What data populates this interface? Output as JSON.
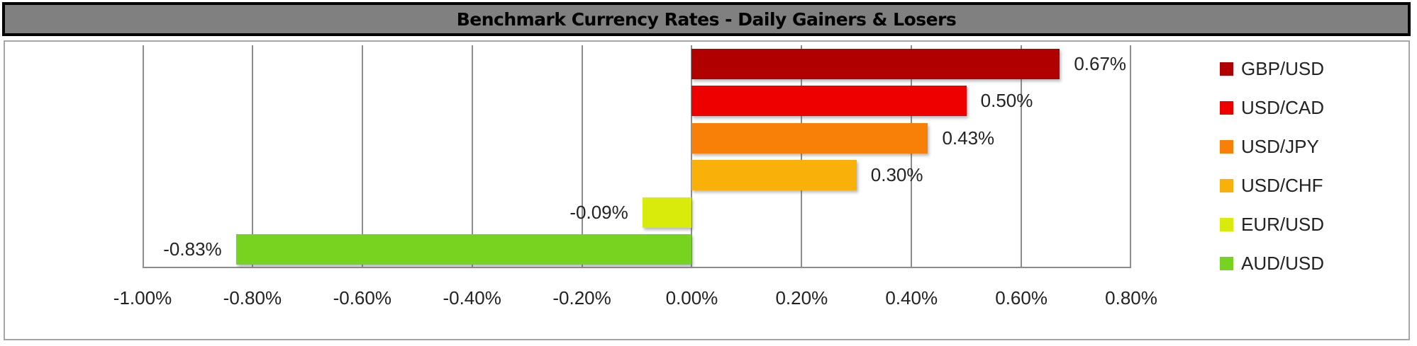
{
  "title": "Benchmark Currency Rates - Daily Gainers & Losers",
  "chart_data": {
    "type": "bar",
    "orientation": "horizontal",
    "title": "Benchmark Currency Rates - Daily Gainers & Losers",
    "xlabel": "",
    "ylabel": "",
    "xlim": [
      -1.0,
      0.8
    ],
    "x_ticks": [
      "-1.00%",
      "-0.80%",
      "-0.60%",
      "-0.40%",
      "-0.20%",
      "0.00%",
      "0.20%",
      "0.40%",
      "0.60%",
      "0.80%"
    ],
    "grid": "vertical",
    "legend_position": "right",
    "categories": [
      "GBP/USD",
      "USD/CAD",
      "USD/JPY",
      "USD/CHF",
      "EUR/USD",
      "AUD/USD"
    ],
    "values": [
      0.67,
      0.5,
      0.43,
      0.3,
      -0.09,
      -0.83
    ],
    "value_labels": [
      "0.67%",
      "0.50%",
      "0.43%",
      "0.30%",
      "-0.09%",
      "-0.83%"
    ],
    "colors": [
      "#b00000",
      "#ee0000",
      "#f98008",
      "#f9b10a",
      "#d9eb0a",
      "#76d31f"
    ],
    "unit": "%"
  },
  "legend": [
    {
      "label": "GBP/USD",
      "color": "#b00000"
    },
    {
      "label": "USD/CAD",
      "color": "#ee0000"
    },
    {
      "label": "USD/JPY",
      "color": "#f98008"
    },
    {
      "label": "USD/CHF",
      "color": "#f9b10a"
    },
    {
      "label": "EUR/USD",
      "color": "#d9eb0a"
    },
    {
      "label": "AUD/USD",
      "color": "#76d31f"
    }
  ]
}
